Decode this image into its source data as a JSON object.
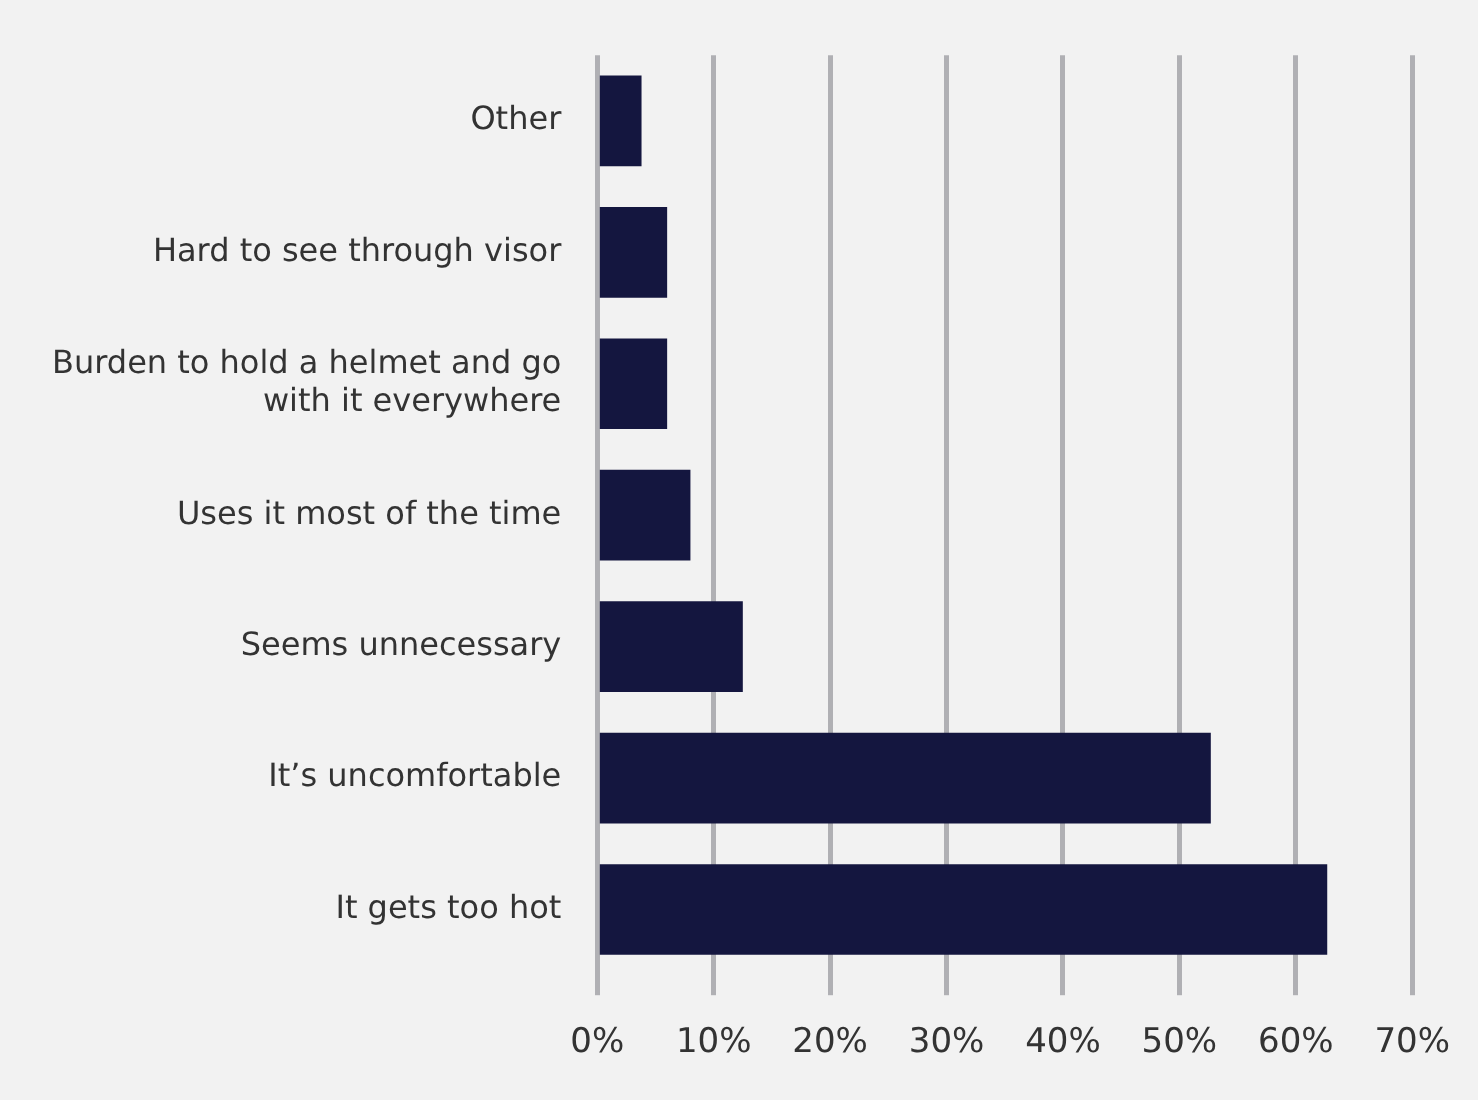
{
  "chart_data": {
    "type": "bar",
    "orientation": "horizontal",
    "categories": [
      "Other",
      "Hard to see through visor",
      "Burden to hold a helmet and go with it everywhere",
      "Uses it most of the time",
      "Seems unnecessary",
      "It’s uncomfortable",
      "It gets too hot"
    ],
    "values": [
      3.8,
      6,
      6,
      8,
      12.5,
      52.7,
      62.7
    ],
    "color": "#14163f",
    "xlim": [
      0,
      70
    ],
    "xticks": [
      {
        "value": 0,
        "label": "0%"
      },
      {
        "value": 10,
        "label": "10%"
      },
      {
        "value": 20,
        "label": "20%"
      },
      {
        "value": 30,
        "label": "30%"
      },
      {
        "value": 40,
        "label": "40%"
      },
      {
        "value": 50,
        "label": "50%"
      },
      {
        "value": 60,
        "label": "60%"
      },
      {
        "value": 70,
        "label": "70%"
      }
    ],
    "grid": "x",
    "legend": false
  }
}
